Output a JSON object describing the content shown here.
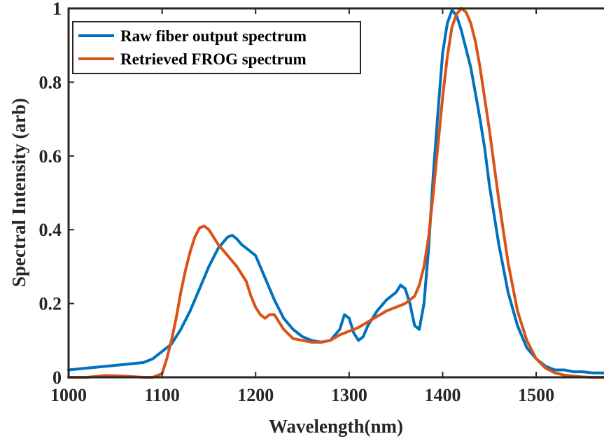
{
  "chart_data": {
    "type": "line",
    "xlabel": "Wavelength(nm)",
    "ylabel": "Spectral Intensity (arb)",
    "xlim": [
      1000,
      1580
    ],
    "ylim": [
      0,
      1
    ],
    "xticks": [
      1000,
      1100,
      1200,
      1300,
      1400,
      1500
    ],
    "xtick_labels": [
      "1000",
      "1100",
      "1200",
      "1300",
      "1400",
      "1500"
    ],
    "yticks": [
      0,
      0.2,
      0.4,
      0.6,
      0.8,
      1
    ],
    "ytick_labels": [
      "0",
      "0.2",
      "0.4",
      "0.6",
      "0.8",
      "1"
    ],
    "grid": false,
    "legend_position": "top-left",
    "series": [
      {
        "name": "Raw fiber output spectrum",
        "color": "#0072BD",
        "x": [
          1000,
          1020,
          1040,
          1060,
          1080,
          1090,
          1100,
          1110,
          1120,
          1130,
          1140,
          1150,
          1160,
          1170,
          1175,
          1180,
          1185,
          1190,
          1195,
          1200,
          1205,
          1210,
          1220,
          1230,
          1240,
          1250,
          1260,
          1270,
          1280,
          1290,
          1295,
          1300,
          1305,
          1310,
          1315,
          1320,
          1330,
          1340,
          1350,
          1355,
          1360,
          1365,
          1370,
          1375,
          1380,
          1385,
          1390,
          1395,
          1400,
          1405,
          1410,
          1415,
          1420,
          1425,
          1430,
          1435,
          1440,
          1445,
          1450,
          1460,
          1470,
          1480,
          1490,
          1500,
          1510,
          1520,
          1530,
          1540,
          1550,
          1560,
          1570,
          1580
        ],
        "y": [
          0.02,
          0.025,
          0.03,
          0.035,
          0.04,
          0.05,
          0.07,
          0.09,
          0.13,
          0.18,
          0.24,
          0.3,
          0.35,
          0.38,
          0.385,
          0.375,
          0.36,
          0.35,
          0.34,
          0.33,
          0.3,
          0.27,
          0.21,
          0.16,
          0.13,
          0.11,
          0.1,
          0.095,
          0.1,
          0.13,
          0.17,
          0.16,
          0.12,
          0.1,
          0.11,
          0.14,
          0.18,
          0.21,
          0.23,
          0.25,
          0.24,
          0.2,
          0.14,
          0.13,
          0.2,
          0.35,
          0.55,
          0.72,
          0.88,
          0.96,
          0.995,
          0.98,
          0.94,
          0.89,
          0.84,
          0.77,
          0.7,
          0.62,
          0.52,
          0.36,
          0.23,
          0.14,
          0.08,
          0.05,
          0.03,
          0.02,
          0.02,
          0.015,
          0.015,
          0.012,
          0.012,
          0.01
        ]
      },
      {
        "name": "Retrieved FROG spectrum",
        "color": "#D95319",
        "x": [
          1000,
          1020,
          1040,
          1060,
          1080,
          1090,
          1100,
          1105,
          1110,
          1115,
          1120,
          1125,
          1130,
          1135,
          1140,
          1145,
          1150,
          1155,
          1160,
          1170,
          1180,
          1190,
          1195,
          1200,
          1205,
          1210,
          1215,
          1220,
          1225,
          1230,
          1240,
          1250,
          1260,
          1270,
          1280,
          1290,
          1300,
          1310,
          1320,
          1330,
          1340,
          1350,
          1360,
          1365,
          1370,
          1375,
          1380,
          1385,
          1390,
          1395,
          1400,
          1405,
          1410,
          1415,
          1420,
          1425,
          1430,
          1435,
          1440,
          1450,
          1460,
          1470,
          1480,
          1490,
          1500,
          1510,
          1520,
          1530,
          1540,
          1550,
          1560,
          1570,
          1580
        ],
        "y": [
          0.0,
          0.0,
          0.005,
          0.003,
          0.0,
          0.0,
          0.01,
          0.05,
          0.1,
          0.16,
          0.23,
          0.29,
          0.34,
          0.38,
          0.405,
          0.41,
          0.4,
          0.38,
          0.36,
          0.33,
          0.3,
          0.26,
          0.22,
          0.19,
          0.17,
          0.16,
          0.17,
          0.17,
          0.15,
          0.13,
          0.105,
          0.1,
          0.095,
          0.095,
          0.1,
          0.115,
          0.125,
          0.135,
          0.15,
          0.165,
          0.18,
          0.19,
          0.2,
          0.21,
          0.22,
          0.25,
          0.3,
          0.38,
          0.5,
          0.63,
          0.76,
          0.87,
          0.95,
          0.985,
          1.0,
          0.99,
          0.96,
          0.91,
          0.84,
          0.67,
          0.48,
          0.31,
          0.18,
          0.1,
          0.05,
          0.025,
          0.012,
          0.006,
          0.003,
          0.001,
          0.0,
          0.0,
          0.0
        ]
      }
    ]
  }
}
